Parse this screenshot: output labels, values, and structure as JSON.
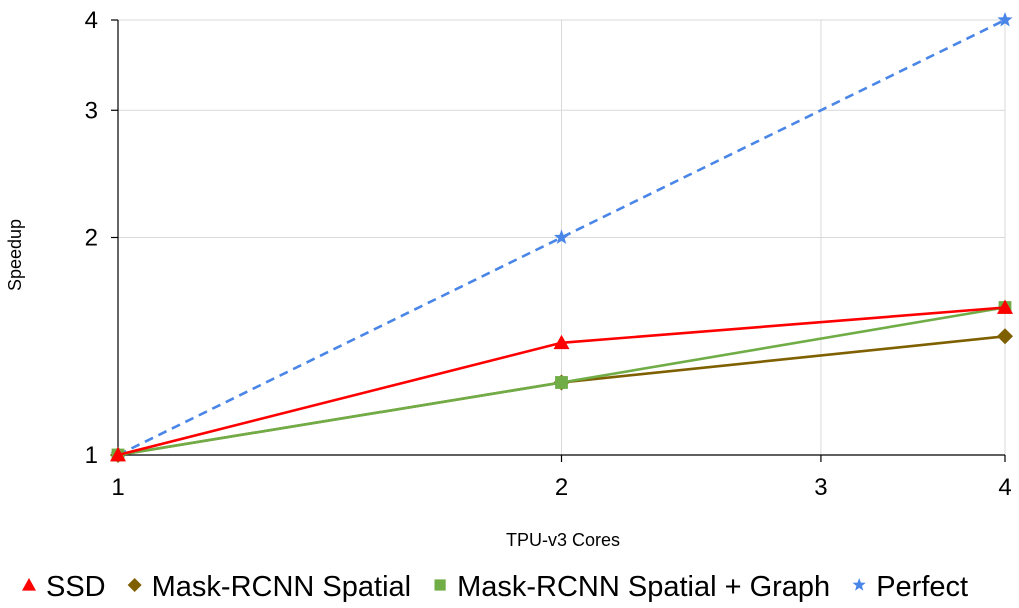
{
  "chart_data": {
    "type": "line",
    "xscale": "log",
    "yscale": "log",
    "x": [
      1,
      2,
      4
    ],
    "xticks": [
      1,
      2,
      3,
      4
    ],
    "yticks": [
      1,
      2,
      3,
      4
    ],
    "xlim": [
      1,
      4
    ],
    "ylim": [
      1,
      4
    ],
    "xlabel": "TPU-v3 Cores",
    "ylabel": "Speedup",
    "grid": true,
    "legend_position": "bottom",
    "series": [
      {
        "name": "SSD",
        "values": [
          1,
          1.43,
          1.6
        ],
        "color": "#ff0000",
        "marker": "triangle",
        "dash": false
      },
      {
        "name": "Mask-RCNN Spatial",
        "values": [
          1,
          1.26,
          1.46
        ],
        "color": "#7f6000",
        "marker": "diamond",
        "dash": false
      },
      {
        "name": "Mask-RCNN Spatial + Graph",
        "values": [
          1,
          1.26,
          1.6
        ],
        "color": "#70ad47",
        "marker": "square",
        "dash": false
      },
      {
        "name": "Perfect",
        "values": [
          1,
          2,
          4
        ],
        "color": "#4a86e8",
        "marker": "star",
        "dash": true
      }
    ]
  }
}
